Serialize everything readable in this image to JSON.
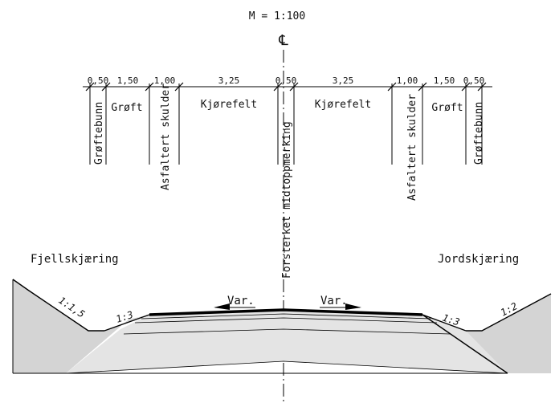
{
  "scale": "M = 1:100",
  "centerline_symbol": "℄",
  "widths": {
    "l_ditch_bottom": "0,50",
    "l_ditch": "1,50",
    "l_shoulder": "1,00",
    "l_lane": "3,25",
    "center_marking": "0,50",
    "r_lane": "3,25",
    "r_shoulder": "1,00",
    "r_ditch": "1,50",
    "r_ditch_bottom": "0,50"
  },
  "labels": {
    "l_ditch_bottom": "Grøftebunn",
    "l_ditch": "Grøft",
    "l_shoulder": "Asfaltert skulder",
    "l_lane": "Kjørefelt",
    "center_marking": "Forsterket midtoppmerking",
    "r_lane": "Kjørefelt",
    "r_shoulder": "Asfaltert skulder",
    "r_ditch": "Grøft",
    "r_ditch_bottom": "Grøftebunn"
  },
  "sides": {
    "left": "Fjellskjæring",
    "right": "Jordskjæring"
  },
  "slopes": {
    "left_outer": "1:1,5",
    "left_inner": "1:3",
    "right_inner": "1:3",
    "right_outer": "1:2"
  },
  "crossfall": {
    "left": "Var.",
    "right": "Var."
  },
  "colors": {
    "cut": "#d4d4d4",
    "road_body": "#e4e4e4",
    "asphalt": "#000000"
  }
}
